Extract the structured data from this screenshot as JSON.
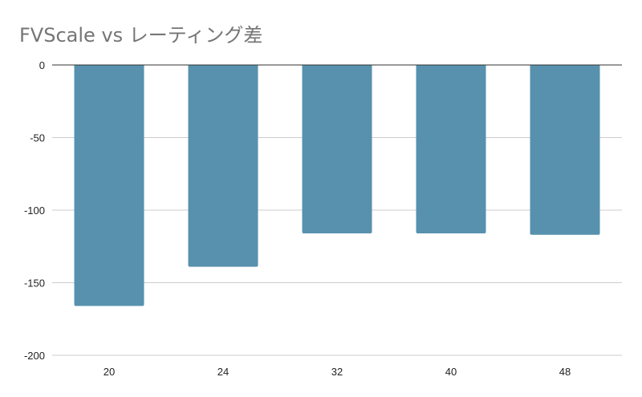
{
  "chart_data": {
    "type": "bar",
    "title": "FVScale vs レーティング差",
    "categories": [
      "20",
      "24",
      "32",
      "40",
      "48"
    ],
    "values": [
      -166,
      -139,
      -116,
      -116,
      -117
    ],
    "ylim": [
      -200,
      0
    ],
    "yticks": [
      0,
      -50,
      -100,
      -150,
      -200
    ],
    "ytick_labels": [
      "0",
      "-50",
      "-100",
      "-150",
      "-200"
    ],
    "grid": true,
    "legend": "none",
    "colors": {
      "bar": "#5791ae",
      "grid": "#cccccc",
      "zero_line": "#333333"
    }
  }
}
